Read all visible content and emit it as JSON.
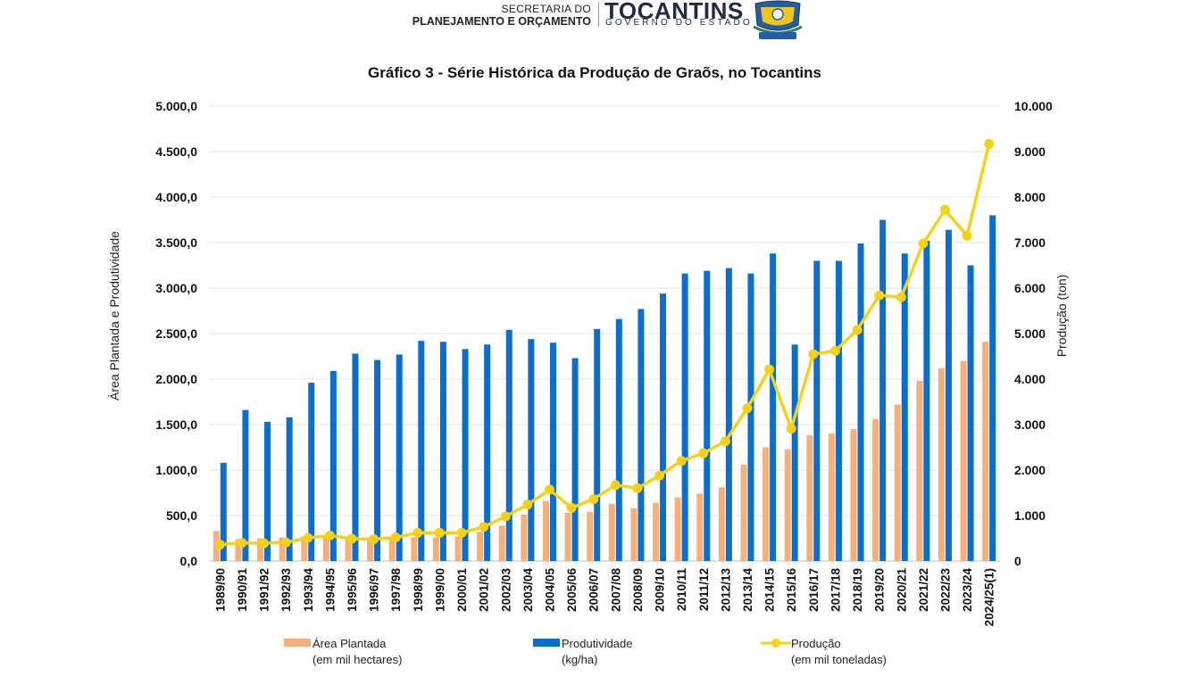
{
  "header": {
    "secretaria_line1": "SECRETARIA DO",
    "secretaria_line2": "PLANEJAMENTO E ORÇAMENTO",
    "state_name": "TOCANTINS",
    "state_sub": "GOVERNO DO ESTADO"
  },
  "colors": {
    "area": "#F5B079",
    "produtividade": "#0A6ED1",
    "producao": "#F7D117",
    "grid": "#E6E6E6"
  },
  "chart_data": {
    "type": "bar",
    "title": "Gráfico 3 - Série Histórica da Produção de Graõs, no Tocantins",
    "ylabel": "Área Plantada e Produtividade",
    "ylabel_right": "Produção (ton)",
    "ylim": [
      0,
      5000
    ],
    "ylim_right": [
      0,
      10000
    ],
    "yticks": [
      "0,0",
      "500,0",
      "1.000,0",
      "1.500,0",
      "2.000,0",
      "2.500,0",
      "3.000,0",
      "3.500,0",
      "4.000,0",
      "4.500,0",
      "5.000,0"
    ],
    "yticks_right": [
      "0",
      "1.000",
      "2.000",
      "3.000",
      "4.000",
      "5.000",
      "6.000",
      "7.000",
      "8.000",
      "9.000",
      "10.000"
    ],
    "categories": [
      "1989/90",
      "1990/91",
      "1991/92",
      "1992/93",
      "1993/94",
      "1994/95",
      "1995/96",
      "1996/97",
      "1997/98",
      "1998/99",
      "1999/00",
      "2000/01",
      "2001/02",
      "2002/03",
      "2003/04",
      "2004/05",
      "2005/06",
      "2006/07",
      "2007/08",
      "2008/09",
      "2009/10",
      "2010/11",
      "2011/12",
      "2012/13",
      "2013/14",
      "2014/15",
      "2015/16",
      "2016/17",
      "2017/18",
      "2018/19",
      "2019/20",
      "2020/21",
      "2021/22",
      "2022/23",
      "2023/24",
      "2024/25(1)"
    ],
    "series": [
      {
        "name": "Área Plantada",
        "legend_line1": "Área Plantada",
        "legend_line2": "(em mil hectares)",
        "type": "bar",
        "axis": "left",
        "values": [
          330,
          240,
          250,
          260,
          270,
          270,
          250,
          230,
          240,
          260,
          260,
          270,
          320,
          390,
          510,
          660,
          530,
          540,
          630,
          580,
          640,
          700,
          740,
          810,
          1060,
          1250,
          1230,
          1380,
          1400,
          1450,
          1560,
          1720,
          1980,
          2120,
          2200,
          2410
        ]
      },
      {
        "name": "Produtividade",
        "legend_line1": "Produtividade",
        "legend_line2": "(kg/ha)",
        "type": "bar",
        "axis": "left",
        "values": [
          1080,
          1660,
          1530,
          1580,
          1960,
          2090,
          2280,
          2210,
          2270,
          2420,
          2410,
          2330,
          2380,
          2540,
          2440,
          2400,
          2230,
          2550,
          2660,
          2770,
          2940,
          3160,
          3190,
          3220,
          3160,
          3380,
          2380,
          3300,
          3300,
          3490,
          3750,
          3380,
          3520,
          3640,
          3250,
          3800
        ]
      },
      {
        "name": "Produção",
        "legend_line1": "Produção",
        "legend_line2": "(em mil toneladas)",
        "type": "line",
        "axis": "right",
        "values": [
          360,
          400,
          390,
          410,
          510,
          560,
          490,
          480,
          520,
          620,
          620,
          620,
          750,
          980,
          1240,
          1570,
          1170,
          1360,
          1670,
          1600,
          1880,
          2200,
          2370,
          2630,
          3360,
          4210,
          2910,
          4550,
          4620,
          5080,
          5840,
          5800,
          6980,
          7720,
          7150,
          9170
        ]
      }
    ]
  }
}
